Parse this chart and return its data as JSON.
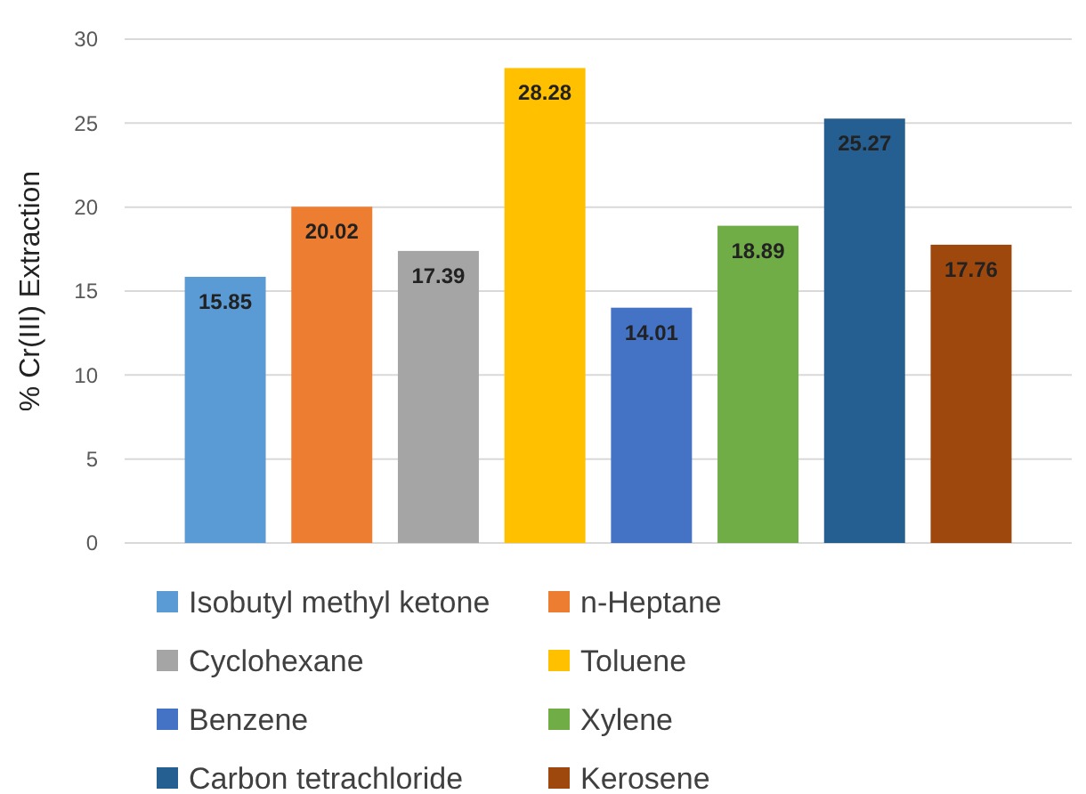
{
  "chart_data": {
    "type": "bar",
    "ylabel": "% Cr(III) Extraction",
    "categories": [
      null
    ],
    "ylim": [
      0,
      30
    ],
    "yticks": [
      0,
      5,
      10,
      15,
      20,
      25,
      30
    ],
    "grid": "y",
    "legend": "bottom",
    "data_labels": true,
    "series": [
      {
        "name": "Isobutyl methyl ketone",
        "color": "#5b9bd5",
        "values": [
          15.85
        ]
      },
      {
        "name": "n-Heptane",
        "color": "#ed7d31",
        "values": [
          20.02
        ]
      },
      {
        "name": "Cyclohexane",
        "color": "#a5a5a5",
        "values": [
          17.39
        ]
      },
      {
        "name": "Toluene",
        "color": "#ffc000",
        "values": [
          28.28
        ]
      },
      {
        "name": "Benzene",
        "color": "#4472c4",
        "values": [
          14.01
        ]
      },
      {
        "name": "Xylene",
        "color": "#70ad47",
        "values": [
          18.89
        ]
      },
      {
        "name": "Carbon tetrachloride",
        "color": "#255e91",
        "values": [
          25.27
        ]
      },
      {
        "name": "Kerosene",
        "color": "#9e480e",
        "values": [
          17.76
        ]
      }
    ]
  }
}
